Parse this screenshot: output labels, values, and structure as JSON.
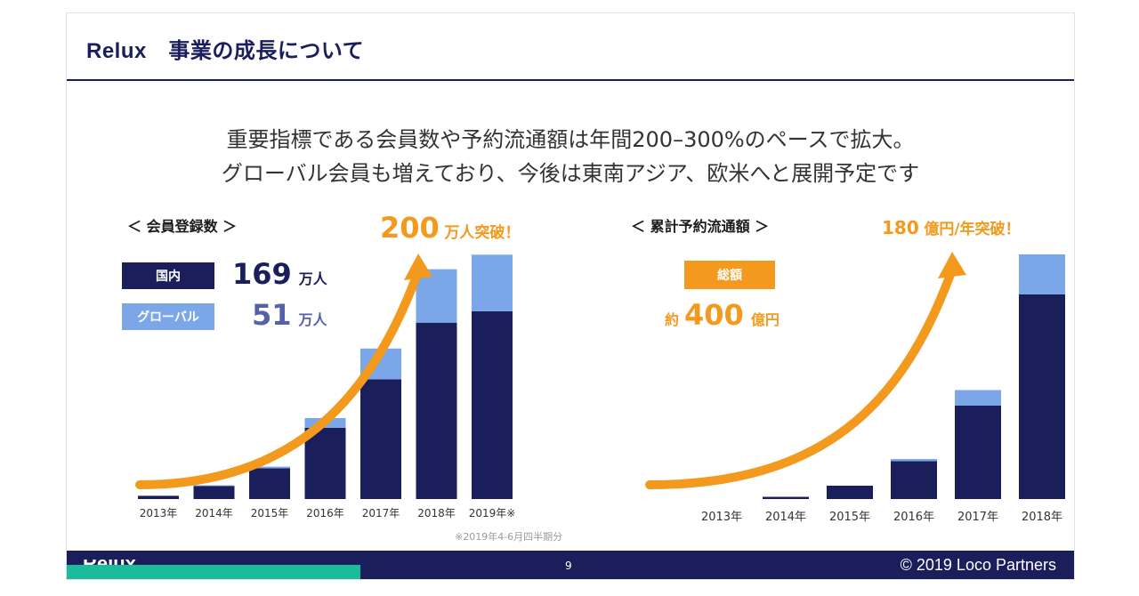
{
  "slide": {
    "title": "Relux　事業の成長について",
    "lead_line1": "重要指標である会員数や予約流通額は年間200–300%のペースで拡大。",
    "lead_line2": "グローバル会員も増えており、今後は東南アジア、欧米へと展開予定です"
  },
  "members": {
    "heading": "＜ 会員登録数 ＞",
    "callout_number": "200",
    "callout_text": "万人突破！",
    "legend": [
      {
        "label": "国内",
        "value": "169",
        "unit": "万人",
        "color": "#1a1f5c",
        "value_color": "#1a1f5c"
      },
      {
        "label": "グローバル",
        "value": "51",
        "unit": "万人",
        "color": "#7ba7e8",
        "value_color": "#5562a8"
      }
    ],
    "footnote": "※2019年4-6月四半期分"
  },
  "bookings": {
    "heading": "＜ 累計予約流通額 ＞",
    "callout_number": "180",
    "callout_text": "億円/年突破！",
    "total_label": "総額",
    "total_prefix": "約",
    "total_value": "400",
    "total_unit": "億円"
  },
  "footer": {
    "logo": "Relux",
    "page": "9",
    "copyright": "© 2019  Loco Partners"
  },
  "chart_data": [
    {
      "type": "bar",
      "stacked": true,
      "categories": [
        "2013年",
        "2014年",
        "2015年",
        "2016年",
        "2017年",
        "2018年",
        "2019年※"
      ],
      "series": [
        {
          "name": "国内",
          "color": "#1a1f5c",
          "values": [
            2,
            8,
            19,
            44,
            74,
            109,
            116
          ]
        },
        {
          "name": "グローバル",
          "color": "#7ba7e8",
          "values": [
            0,
            0.5,
            1,
            6,
            19,
            33,
            35
          ]
        }
      ],
      "ylim": [
        0,
        155
      ],
      "grid": false,
      "units": "万人",
      "trend_arrow": true
    },
    {
      "type": "bar",
      "stacked": true,
      "categories": [
        "2013年",
        "2014年",
        "2015年",
        "2016年",
        "2017年",
        "2018年"
      ],
      "series": [
        {
          "name": "",
          "color": "#1a1f5c",
          "values": [
            0,
            1,
            6,
            17,
            42,
            92
          ]
        },
        {
          "name": "",
          "color": "#7ba7e8",
          "values": [
            0,
            0,
            0,
            1,
            7,
            18
          ]
        }
      ],
      "ylim": [
        0,
        112
      ],
      "grid": false,
      "trend_arrow": true
    }
  ]
}
